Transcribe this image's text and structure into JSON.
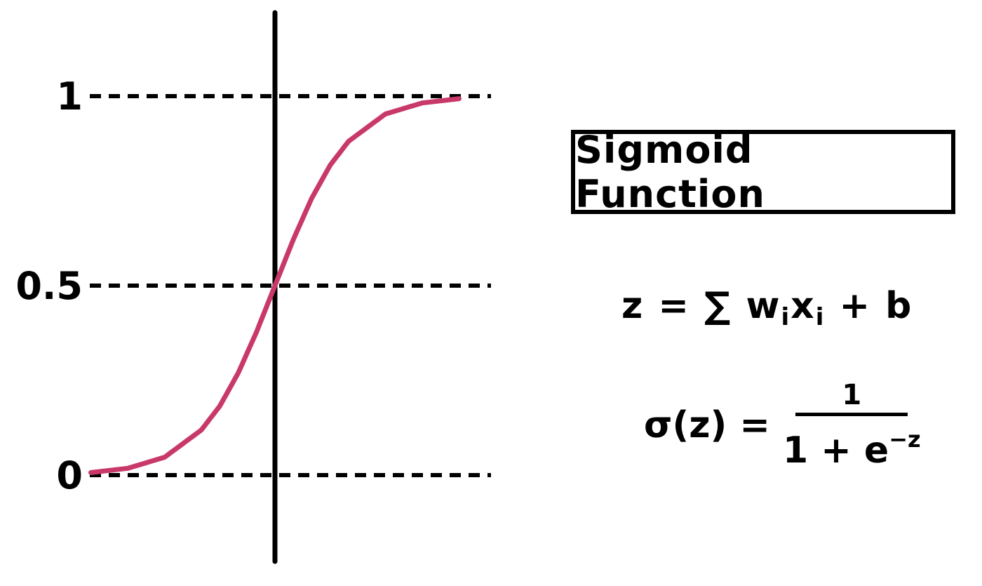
{
  "chart_data": {
    "type": "line",
    "title": "",
    "xlabel": "",
    "ylabel": "",
    "ylim": [
      0,
      1
    ],
    "y_ticks": [
      "0",
      "0.5",
      "1"
    ],
    "y_tick_values": [
      0,
      0.5,
      1
    ],
    "grid": "dashed horizontal lines at y = 0, 0.5, 1",
    "series": [
      {
        "function": "sigmoid",
        "color": "#c8396a",
        "x": [
          -5,
          -4,
          -3,
          -2,
          -1.5,
          -1,
          -0.5,
          0,
          0.5,
          1,
          1.5,
          2,
          3,
          4,
          5
        ],
        "y": [
          0.0067,
          0.018,
          0.047,
          0.119,
          0.182,
          0.269,
          0.378,
          0.5,
          0.622,
          0.731,
          0.818,
          0.881,
          0.953,
          0.982,
          0.9933
        ]
      }
    ]
  },
  "label_box": {
    "text": "Sigmoid Function"
  },
  "equations": {
    "eq1_lhs": "z = ∑ w",
    "eq1_sub1": "i",
    "eq1_mid": "x",
    "eq1_sub2": "i",
    "eq1_rhs": " + b",
    "eq2_lhs": "σ(z) =",
    "eq2_num": "1",
    "eq2_den": "1 + e",
    "eq2_exp": "−z"
  },
  "colors": {
    "curve": "#c8396a",
    "ink": "#000000"
  }
}
